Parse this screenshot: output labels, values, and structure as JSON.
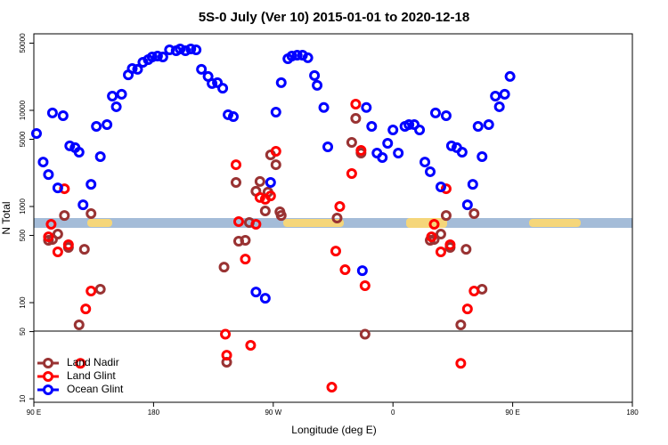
{
  "chart_data": {
    "type": "scatter",
    "title": "5S-0 July (Ver 10)   2015-01-01 to 2020-12-18",
    "x_label": "Longitude (deg E)",
    "y_label": "N Total",
    "xlim": [
      90,
      540
    ],
    "ylim": [
      9.2,
      62500
    ],
    "log_y": true,
    "legend": "lower left",
    "xticks": [
      {
        "value": 90,
        "label": "90 E"
      },
      180,
      {
        "value": 270,
        "label": "90 W"
      },
      {
        "value": 360,
        "label": "0"
      },
      {
        "value": 450,
        "label": "90 E"
      },
      {
        "value": 540,
        "label": "180"
      }
    ],
    "yticks": [
      10,
      50,
      100,
      500,
      1000,
      5000,
      10000,
      50000
    ],
    "series": [
      {
        "name": "Land Nadir",
        "color": "#993333",
        "x": [
          101,
          104,
          108,
          113,
          116,
          124,
          128,
          133,
          140,
          233,
          235,
          242,
          244,
          249,
          252,
          257,
          260,
          264,
          266,
          268,
          272,
          275,
          276,
          318,
          329,
          332,
          336,
          339,
          388,
          391,
          396,
          400,
          403,
          411,
          415,
          421,
          427
        ],
        "values": [
          445,
          454,
          516,
          807,
          375,
          58.7,
          359,
          843,
          138,
          234,
          24,
          1780,
          436,
          445,
          681,
          1440,
          1820,
          900,
          1410,
          3440,
          2720,
          880,
          807,
          758,
          4640,
          8260,
          3590,
          47,
          445,
          454,
          516,
          807,
          375,
          58.7,
          359,
          843,
          138
        ]
      },
      {
        "name": "Land Glint",
        "color": "#ff0000",
        "x": [
          101,
          103,
          108,
          113,
          116,
          125,
          129,
          133,
          234,
          235,
          242,
          244,
          249,
          253,
          257,
          260,
          264,
          268,
          272,
          314,
          317,
          320,
          324,
          329,
          332,
          336,
          339,
          389,
          391,
          396,
          400,
          403,
          411,
          416,
          421
        ],
        "values": [
          484,
          653,
          337,
          1530,
          400,
          23.4,
          86,
          132,
          47,
          28.4,
          2720,
          697,
          284,
          36,
          653,
          1240,
          1190,
          1290,
          3750,
          13.2,
          344,
          1000,
          220,
          2200,
          11600,
          3830,
          150,
          484,
          653,
          337,
          1530,
          400,
          23.4,
          86,
          132
        ]
      },
      {
        "name": "Ocean Glint",
        "color": "#0000ff",
        "x": [
          92,
          97,
          101,
          104,
          108,
          112,
          117,
          121,
          124,
          127,
          133,
          137,
          140,
          145,
          149,
          152,
          156,
          161,
          164,
          168,
          172,
          176,
          179,
          183,
          187,
          192,
          197,
          200,
          204,
          208,
          212,
          216,
          221,
          224,
          228,
          232,
          236,
          240,
          257,
          264,
          268,
          272,
          276,
          281,
          284,
          288,
          292,
          296,
          301,
          303,
          308,
          311,
          337,
          340,
          344,
          348,
          352,
          356,
          360,
          364,
          369,
          372,
          376,
          380,
          384,
          388,
          392,
          396,
          400,
          404,
          408,
          412,
          416,
          420,
          424,
          427,
          432,
          437,
          440,
          444,
          448
        ],
        "values": [
          5740,
          2900,
          2150,
          9400,
          1560,
          8800,
          4270,
          4090,
          3670,
          1040,
          1700,
          6810,
          3300,
          7110,
          14060,
          10900,
          14700,
          23400,
          27200,
          26700,
          31600,
          33700,
          35900,
          36700,
          35900,
          42600,
          41700,
          43500,
          41700,
          43500,
          42600,
          26700,
          22500,
          19000,
          19400,
          17000,
          9000,
          8600,
          129,
          111,
          1780,
          9580,
          19400,
          34400,
          36700,
          37500,
          37500,
          35200,
          23000,
          18200,
          10700,
          4170,
          215,
          10700,
          6810,
          3590,
          3230,
          4540,
          6250,
          3590,
          6810,
          7110,
          7110,
          6250,
          2900,
          2300,
          9400,
          1600,
          8800,
          4270,
          4090,
          3670,
          1040,
          1700,
          6810,
          3300,
          7110,
          14060,
          10900,
          14700,
          22500
        ]
      }
    ]
  }
}
